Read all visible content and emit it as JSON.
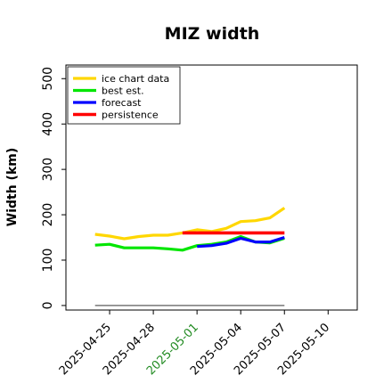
{
  "chart_data": {
    "type": "line",
    "title": "MIZ width",
    "xlabel": "",
    "ylabel": "Width (km)",
    "xlim": [
      "2025-04-22",
      "2025-05-12"
    ],
    "ylim": [
      -10,
      530
    ],
    "yticks": [
      0,
      100,
      200,
      300,
      400,
      500
    ],
    "xticks": [
      {
        "date": "2025-04-25",
        "label": "2025-04-25",
        "color": "#000000"
      },
      {
        "date": "2025-04-28",
        "label": "2025-04-28",
        "color": "#000000"
      },
      {
        "date": "2025-05-01",
        "label": "2025-05-01",
        "color": "#228b22"
      },
      {
        "date": "2025-05-04",
        "label": "2025-05-04",
        "color": "#000000"
      },
      {
        "date": "2025-05-07",
        "label": "2025-05-07",
        "color": "#000000"
      },
      {
        "date": "2025-05-10",
        "label": "2025-05-10",
        "color": "#000000"
      }
    ],
    "legend_position": "top-left",
    "grid": false,
    "series": [
      {
        "name": "ice chart data",
        "color": "#ffd700",
        "width": 3.2,
        "x": [
          "2025-04-24",
          "2025-04-25",
          "2025-04-26",
          "2025-04-27",
          "2025-04-28",
          "2025-04-29",
          "2025-04-30",
          "2025-05-01",
          "2025-05-02",
          "2025-05-03",
          "2025-05-04",
          "2025-05-05",
          "2025-05-06",
          "2025-05-07"
        ],
        "y": [
          157,
          153,
          147,
          152,
          155,
          155,
          160,
          167,
          163,
          170,
          185,
          187,
          193,
          215
        ]
      },
      {
        "name": "best est.",
        "color": "#00e600",
        "width": 3.2,
        "x": [
          "2025-04-24",
          "2025-04-25",
          "2025-04-26",
          "2025-04-27",
          "2025-04-28",
          "2025-04-29",
          "2025-04-30",
          "2025-05-01",
          "2025-05-02",
          "2025-05-03",
          "2025-05-04",
          "2025-05-05",
          "2025-05-06",
          "2025-05-07"
        ],
        "y": [
          133,
          135,
          127,
          127,
          127,
          125,
          122,
          132,
          135,
          140,
          152,
          140,
          138,
          148
        ]
      },
      {
        "name": "forecast",
        "color": "#0000ff",
        "width": 3.2,
        "x": [
          "2025-05-01",
          "2025-05-02",
          "2025-05-03",
          "2025-05-04",
          "2025-05-05",
          "2025-05-06",
          "2025-05-07"
        ],
        "y": [
          130,
          132,
          137,
          148,
          140,
          140,
          150
        ]
      },
      {
        "name": "persistence",
        "color": "#ff0000",
        "width": 3.6,
        "x": [
          "2025-04-30",
          "2025-05-07"
        ],
        "y": [
          160,
          160
        ]
      },
      {
        "name": "",
        "color": "#777777",
        "width": 1.5,
        "x": [
          "2025-04-24",
          "2025-05-07"
        ],
        "y": [
          0,
          0
        ]
      }
    ]
  }
}
